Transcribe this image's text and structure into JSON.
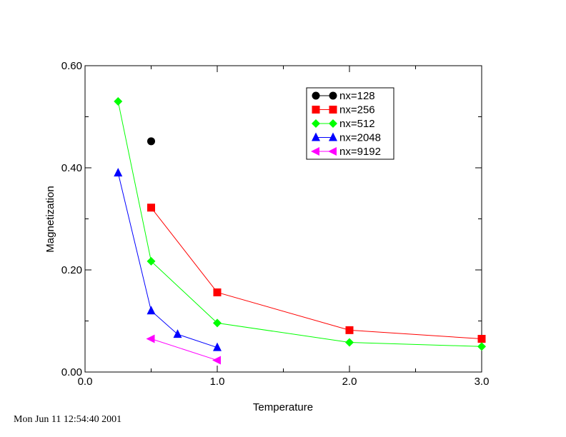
{
  "timestamp": "Mon Jun 11 12:54:40 2001",
  "chart_data": {
    "type": "line",
    "title": "",
    "xlabel": "Temperature",
    "ylabel": "Magnetization",
    "xlim": [
      0.0,
      3.0
    ],
    "ylim": [
      0.0,
      0.6
    ],
    "xticks": [
      0.0,
      1.0,
      2.0,
      3.0
    ],
    "xtick_labels": [
      "0.0",
      "1.0",
      "2.0",
      "3.0"
    ],
    "yticks": [
      0.0,
      0.2,
      0.4,
      0.6
    ],
    "ytick_labels": [
      "0.00",
      "0.20",
      "0.40",
      "0.60"
    ],
    "grid": false,
    "legend_position": "top-right",
    "series": [
      {
        "name": "nx=128",
        "color": "#000000",
        "marker": "circle",
        "x": [
          0.5
        ],
        "y": [
          0.452
        ]
      },
      {
        "name": "nx=256",
        "color": "#ff0000",
        "marker": "square",
        "x": [
          0.5,
          1.0,
          2.0,
          3.0
        ],
        "y": [
          0.322,
          0.156,
          0.082,
          0.065
        ]
      },
      {
        "name": "nx=512",
        "color": "#00ff00",
        "marker": "diamond",
        "x": [
          0.25,
          0.5,
          1.0,
          2.0,
          3.0
        ],
        "y": [
          0.53,
          0.217,
          0.096,
          0.058,
          0.05
        ]
      },
      {
        "name": "nx=2048",
        "color": "#0000ff",
        "marker": "triangle-up",
        "x": [
          0.25,
          0.5,
          0.7,
          1.0
        ],
        "y": [
          0.39,
          0.12,
          0.074,
          0.048
        ]
      },
      {
        "name": "nx=9192",
        "color": "#ff00ff",
        "marker": "triangle-left",
        "x": [
          0.5,
          1.0
        ],
        "y": [
          0.065,
          0.023
        ]
      }
    ]
  }
}
